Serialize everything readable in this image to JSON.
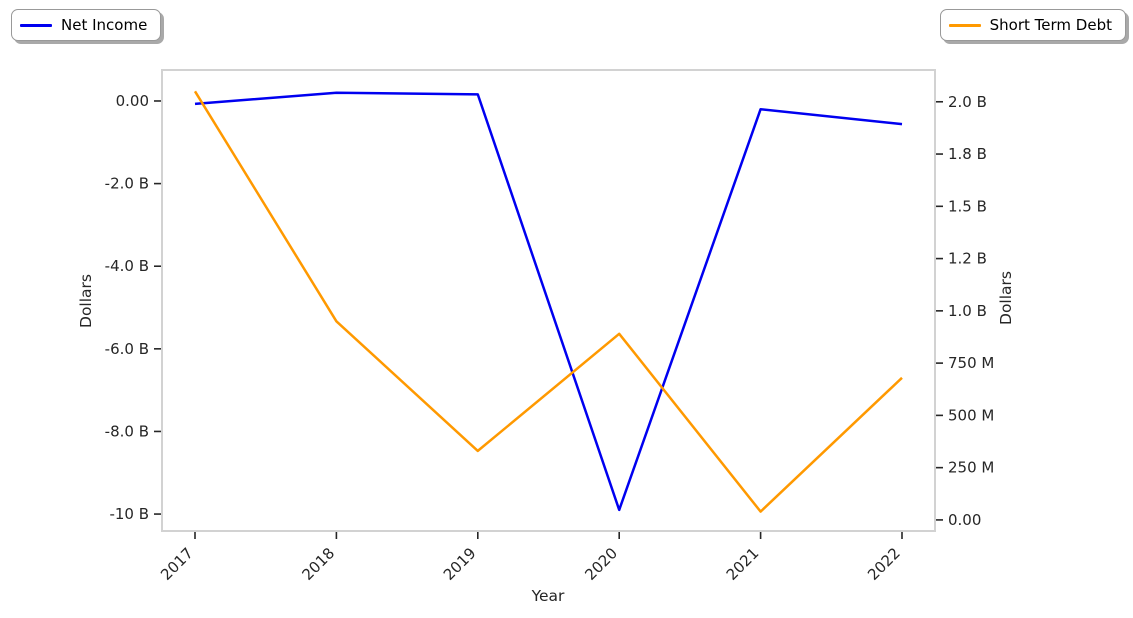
{
  "legend_left": {
    "label": "Net Income",
    "color": "#0000f0"
  },
  "legend_right": {
    "label": "Short Term Debt",
    "color": "#ff9900"
  },
  "colors": {
    "axis_border": "#d2d2d2",
    "tick_mark": "#262626",
    "tick_text": "#262626",
    "background": "#ffffff"
  },
  "chart_data": {
    "type": "line",
    "title": "",
    "xlabel": "Year",
    "x": [
      2017,
      2018,
      2019,
      2020,
      2021,
      2022
    ],
    "x_tick_labels": [
      "2017",
      "2018",
      "2019",
      "2020",
      "2021",
      "2022"
    ],
    "x_tick_rotation_deg": 45,
    "grid": false,
    "series": [
      {
        "name": "Net Income",
        "axis": "left",
        "color": "#0000f0",
        "values_billion": [
          -0.07,
          0.2,
          0.16,
          -9.9,
          -0.2,
          -0.56
        ]
      },
      {
        "name": "Short Term Debt",
        "axis": "right",
        "color": "#ff9900",
        "values_billion": [
          2.05,
          0.95,
          0.33,
          0.89,
          0.04,
          0.68
        ]
      }
    ],
    "left_axis": {
      "label": "Dollars",
      "ylim_billion": [
        -10.41,
        0.75
      ],
      "tick_values_billion": [
        0,
        -2,
        -4,
        -6,
        -8,
        -10
      ],
      "tick_labels": [
        "0.00",
        "-2.0 B",
        "-4.0 B",
        "-6.0 B",
        "-8.0 B",
        "-10 B"
      ]
    },
    "right_axis": {
      "label": "Dollars",
      "ylim_billion": [
        -0.053,
        2.152
      ],
      "tick_values_billion": [
        2.0,
        1.75,
        1.5,
        1.25,
        1.0,
        0.75,
        0.5,
        0.25,
        0
      ],
      "tick_labels": [
        "2.0 B",
        "1.8 B",
        "1.5 B",
        "1.2 B",
        "1.0 B",
        "750 M",
        "500 M",
        "250 M",
        "0.00"
      ]
    },
    "legend_positions": [
      "outside upper-left",
      "outside upper-right"
    ]
  }
}
